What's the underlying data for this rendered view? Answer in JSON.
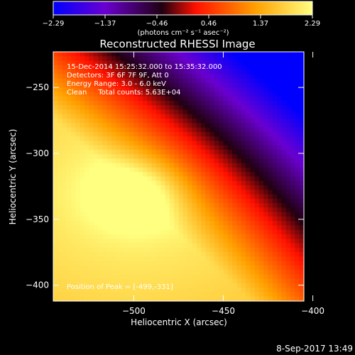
{
  "chart_data": {
    "type": "heatmap",
    "title": "Reconstructed RHESSI Image",
    "xlabel": "Heliocentric X (arcsec)",
    "ylabel": "Heliocentric Y (arcsec)",
    "xlim": [
      -545,
      -405
    ],
    "ylim": [
      -412,
      -223
    ],
    "xticks": [
      -500,
      -450,
      -400
    ],
    "xtick_labels": [
      "−500",
      "−450",
      "−400"
    ],
    "yticks": [
      -250,
      -300,
      -350,
      -400
    ],
    "ytick_labels": [
      "−250",
      "−300",
      "−350",
      "−400"
    ],
    "colorbar": {
      "ticks": [
        "−2.29",
        "−1.37",
        "−0.46",
        "0.46",
        "1.37",
        "2.29"
      ],
      "min": -2.29,
      "max": 2.29,
      "unit_label": "(photons cm⁻² s⁻¹ asec⁻²)",
      "colors": [
        "#0000ff",
        "#6a00d0",
        "#200010",
        "#ff1000",
        "#ffa000",
        "#ffff80"
      ]
    },
    "peak": {
      "x": -499,
      "y": -331
    },
    "grid": false
  },
  "annotations": {
    "time": "15-Dec-2014 15:25:32.000 to 15:35:32.000",
    "detectors": "Detectors: 3F 6F 7F 9F, Att 0",
    "energy": "Energy Range: 3.0 - 6.0 keV",
    "clean": "Clean     Total counts: 5.63E+04",
    "peak_label": "Position of Peak = [-499,-331]"
  },
  "footer": {
    "date": "8-Sep-2017 13:49"
  }
}
